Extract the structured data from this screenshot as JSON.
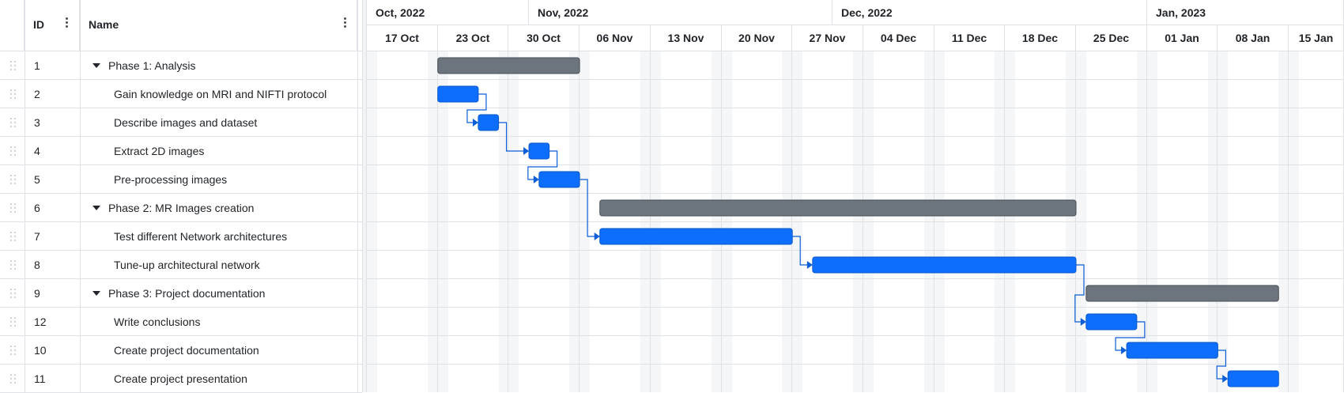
{
  "grid": {
    "columns": {
      "id": "ID",
      "name": "Name"
    }
  },
  "timeline": {
    "months": [
      "Oct, 2022",
      "Nov, 2022",
      "Dec, 2022",
      "Jan, 2023"
    ],
    "weeks": [
      "17 Oct",
      "23 Oct",
      "30 Oct",
      "06 Nov",
      "13 Nov",
      "20 Nov",
      "27 Nov",
      "04 Dec",
      "11 Dec",
      "18 Dec",
      "25 Dec",
      "01 Jan",
      "08 Jan",
      "15 Jan"
    ]
  },
  "tasks": [
    {
      "id": "1",
      "name": "Phase 1: Analysis",
      "summary": true,
      "expanded": true,
      "start": "2022-10-23",
      "end": "2022-11-05"
    },
    {
      "id": "2",
      "name": "Gain knowledge on MRI and NIFTI protocol",
      "summary": false,
      "start": "2022-10-23",
      "end": "2022-10-26"
    },
    {
      "id": "3",
      "name": "Describe images and dataset",
      "summary": false,
      "start": "2022-10-27",
      "end": "2022-10-28"
    },
    {
      "id": "4",
      "name": "Extract 2D images",
      "summary": false,
      "start": "2022-11-01",
      "end": "2022-11-02"
    },
    {
      "id": "5",
      "name": "Pre-processing images",
      "summary": false,
      "start": "2022-11-02",
      "end": "2022-11-05"
    },
    {
      "id": "6",
      "name": "Phase 2: MR Images creation",
      "summary": true,
      "expanded": true,
      "start": "2022-11-08",
      "end": "2022-12-24"
    },
    {
      "id": "7",
      "name": "Test different Network architectures",
      "summary": false,
      "start": "2022-11-08",
      "end": "2022-11-26"
    },
    {
      "id": "8",
      "name": "Tune-up architectural network",
      "summary": false,
      "start": "2022-11-29",
      "end": "2022-12-24"
    },
    {
      "id": "9",
      "name": "Phase 3: Project documentation",
      "summary": true,
      "expanded": true,
      "start": "2022-12-26",
      "end": "2023-01-13"
    },
    {
      "id": "12",
      "name": "Write conclusions",
      "summary": false,
      "start": "2022-12-26",
      "end": "2022-12-30"
    },
    {
      "id": "10",
      "name": "Create project documentation",
      "summary": false,
      "start": "2022-12-30",
      "end": "2023-01-07"
    },
    {
      "id": "11",
      "name": "Create project presentation",
      "summary": false,
      "start": "2023-01-09",
      "end": "2023-01-13"
    }
  ],
  "links": [
    [
      "2",
      "3"
    ],
    [
      "3",
      "4"
    ],
    [
      "4",
      "5"
    ],
    [
      "5",
      "7"
    ],
    [
      "7",
      "8"
    ],
    [
      "8",
      "12"
    ],
    [
      "12",
      "10"
    ],
    [
      "10",
      "11"
    ]
  ],
  "colors": {
    "task_bar": "#0d6efd",
    "summary_bar": "#6c757d",
    "link": "#0b5ed7",
    "weekend": "#f4f6f8",
    "border": "#dee2e6"
  }
}
